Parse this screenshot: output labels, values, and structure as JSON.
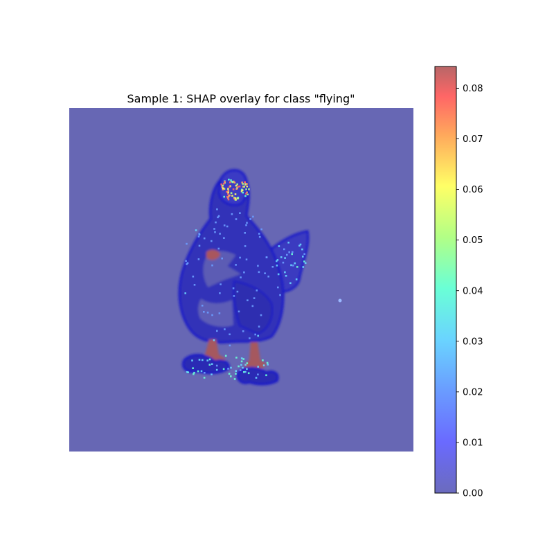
{
  "chart_data": {
    "type": "heatmap",
    "title": "Sample 1: SHAP overlay for class \"flying\"",
    "axes_visible": false,
    "colormap": "jet",
    "overlay_alpha": 0.6,
    "underlying_image": "penguin-bird-figure",
    "colorbar": {
      "vmin": 0.0,
      "vmax": 0.0843,
      "ticks": [
        0.0,
        0.01,
        0.02,
        0.03,
        0.04,
        0.05,
        0.06,
        0.07,
        0.08
      ],
      "tick_labels": [
        "0.00",
        "0.01",
        "0.02",
        "0.03",
        "0.04",
        "0.05",
        "0.06",
        "0.07",
        "0.08"
      ]
    },
    "hotspots": [
      {
        "region": "head-crest",
        "value": 0.075
      },
      {
        "region": "feet",
        "value": 0.03
      },
      {
        "region": "tail",
        "value": 0.025
      },
      {
        "region": "body-outline",
        "value": 0.012
      }
    ]
  },
  "colors": {
    "background": "#6767b4",
    "outline": "#1818c8",
    "accent_red": "#b35a5e"
  }
}
